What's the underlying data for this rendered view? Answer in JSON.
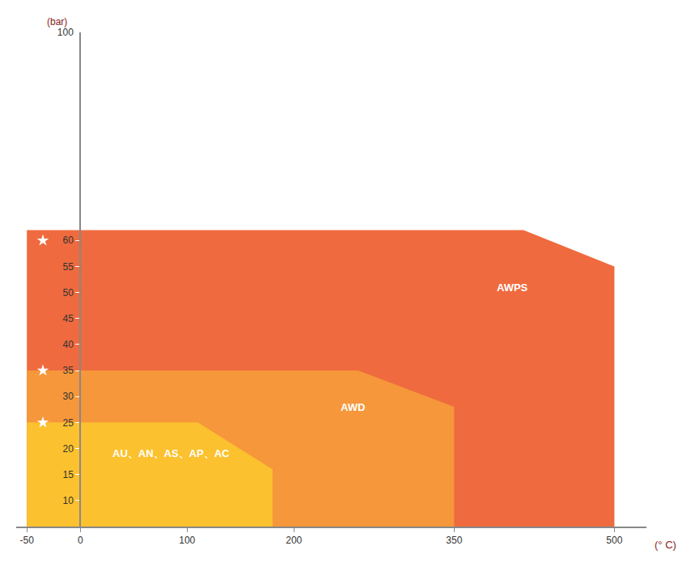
{
  "chart_data": {
    "type": "area",
    "xlabel": "(° C)",
    "ylabel": "(bar)",
    "xlim": [
      -60,
      530
    ],
    "xticks": [
      -50,
      0,
      100,
      200,
      350,
      500
    ],
    "ylim": [
      5,
      100
    ],
    "yticks": [
      10,
      15,
      20,
      25,
      30,
      35,
      40,
      45,
      50,
      55,
      60,
      100
    ],
    "grid": false,
    "series": [
      {
        "type": "area",
        "color": "#ef6a3e",
        "x": [
          -50,
          -50,
          415,
          500,
          500
        ],
        "y": [
          5,
          62,
          62,
          55,
          5
        ]
      },
      {
        "type": "area",
        "color": "#f5973a",
        "x": [
          -50,
          -50,
          260,
          350,
          350
        ],
        "y": [
          5,
          35,
          35,
          28,
          5
        ]
      },
      {
        "type": "area",
        "color": "#fcc12e",
        "x": [
          -50,
          -50,
          110,
          180,
          180
        ],
        "y": [
          5,
          25,
          25,
          16,
          5
        ]
      },
      {
        "type": "scatter",
        "marker": "star",
        "color": "#ffffff",
        "x": [
          -35,
          -35,
          -35
        ],
        "y": [
          25,
          35,
          60
        ]
      }
    ],
    "annotations": [
      {
        "text": "AWPS",
        "x": 405,
        "y": 51
      },
      {
        "text": "AWD",
        "x": 255,
        "y": 28
      },
      {
        "text": "AU、AN、AS、AP、AC",
        "x": 85,
        "y": 19
      }
    ]
  }
}
